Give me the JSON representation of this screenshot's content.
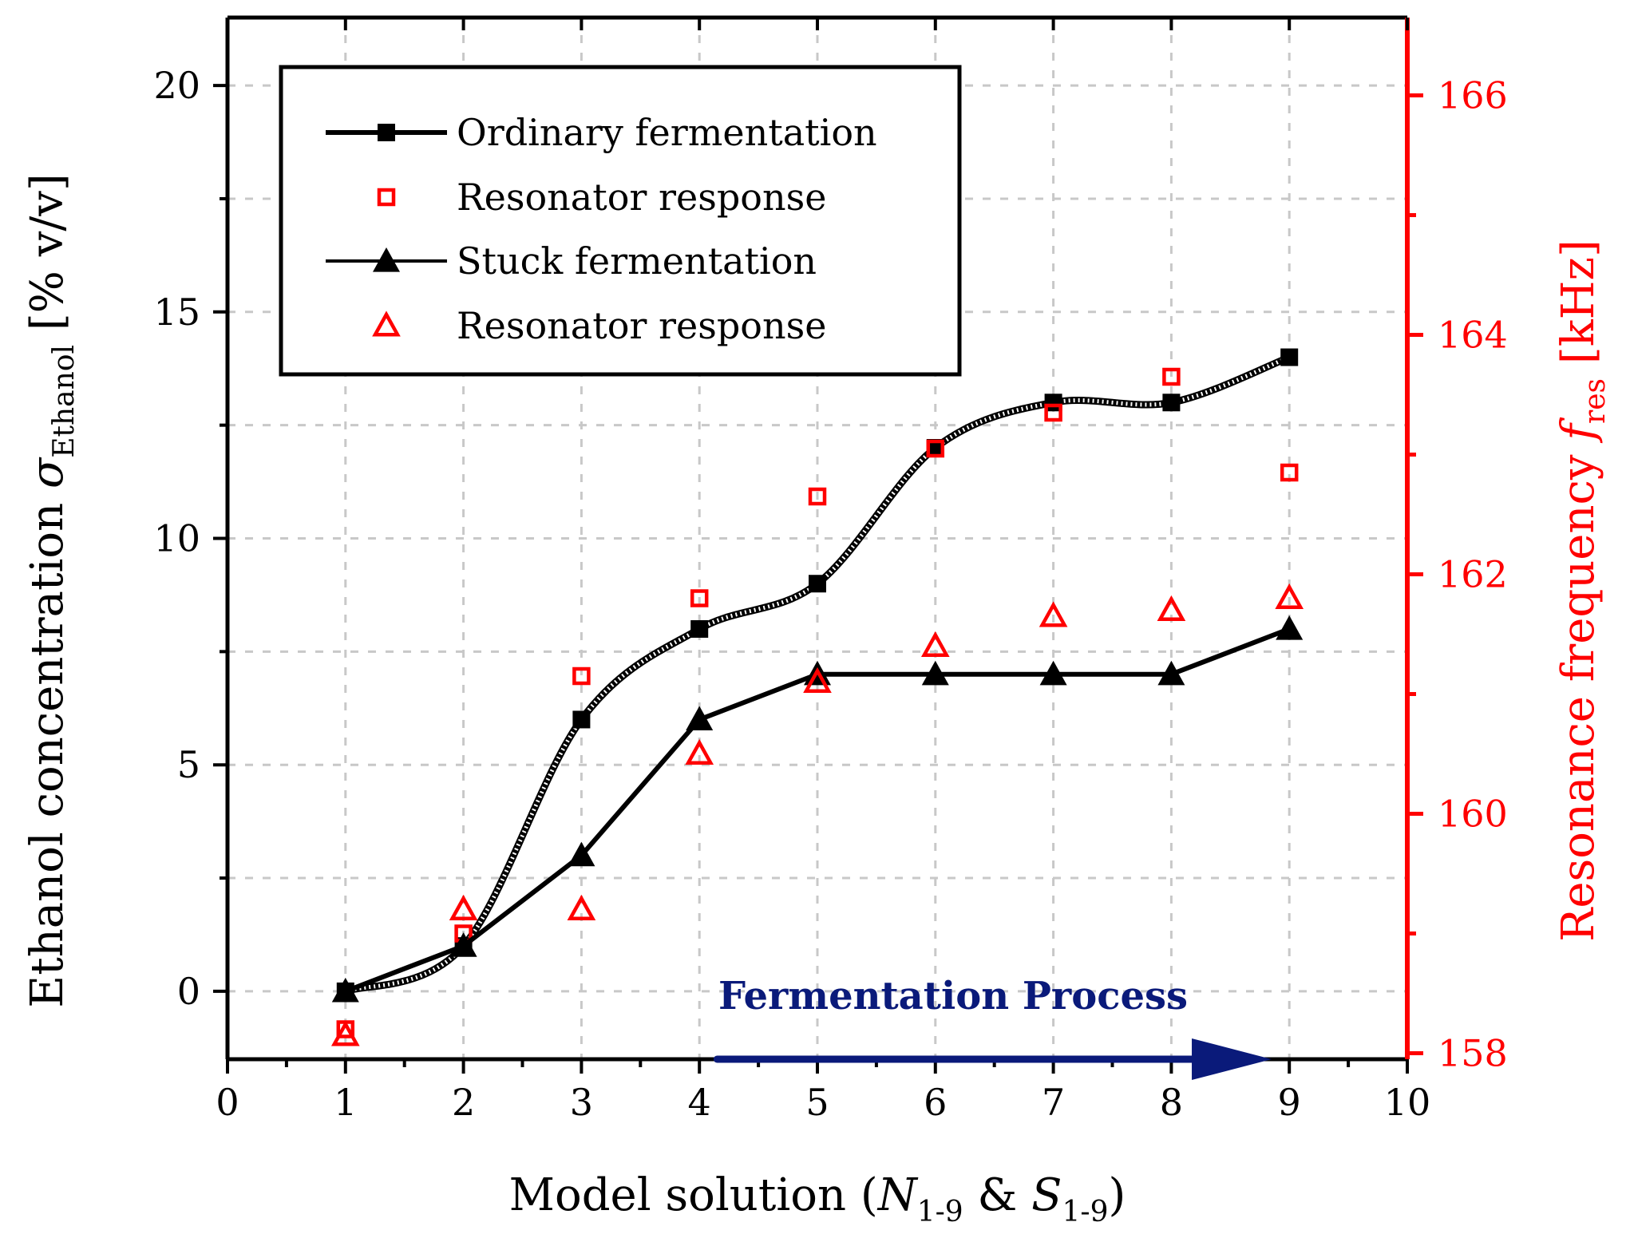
{
  "chart_data": {
    "type": "line",
    "x": [
      1,
      2,
      3,
      4,
      5,
      6,
      7,
      8,
      9
    ],
    "xlim": [
      0,
      10
    ],
    "x_ticks": [
      "0",
      "1",
      "2",
      "3",
      "4",
      "5",
      "6",
      "7",
      "8",
      "9",
      "10"
    ],
    "xlabel": {
      "prefix": "Model solution (",
      "var1": "N",
      "sub1": "1-9",
      "amp": " & ",
      "var2": "S",
      "sub2": "1-9",
      "suffix": ")"
    },
    "y_left": {
      "label": {
        "prefix": "Ethanol concentration ",
        "symbol": "σ",
        "sub": "Ethanol",
        "suffix": " [% v/v]"
      },
      "ylim": [
        -1.5,
        21.5
      ],
      "ticks": [
        "0",
        "5",
        "10",
        "15",
        "20"
      ],
      "tick_values": [
        0,
        5,
        10,
        15,
        20
      ],
      "color": "#000000"
    },
    "y_right": {
      "label": {
        "prefix": "Resonance frequency ",
        "symbol": "f",
        "sub": "res",
        "suffix": " [kHz]"
      },
      "ylim": [
        157.95,
        166.65
      ],
      "ticks": [
        "158",
        "160",
        "162",
        "164",
        "166"
      ],
      "tick_values": [
        158,
        160,
        162,
        164,
        166
      ],
      "color": "#ff0000"
    },
    "grid": true,
    "legend_position": "top-left",
    "series": [
      {
        "name": "Ordinary fermentation",
        "axis": "left",
        "marker": "filled-square",
        "color": "#000000",
        "values": [
          0,
          1,
          6,
          8,
          9,
          12,
          13,
          13,
          14
        ]
      },
      {
        "name": "Resonator response",
        "axis": "right",
        "marker": "open-square",
        "color": "#ff0000",
        "values": [
          158.2,
          159.0,
          161.15,
          161.8,
          162.65,
          163.05,
          163.35,
          163.65,
          162.85
        ]
      },
      {
        "name": "Stuck fermentation",
        "axis": "left",
        "marker": "filled-triangle",
        "color": "#000000",
        "values": [
          0,
          1,
          3,
          6,
          7,
          7,
          7,
          7,
          8
        ]
      },
      {
        "name": "Resonator response",
        "axis": "right",
        "marker": "open-triangle",
        "color": "#ff0000",
        "values": [
          158.15,
          159.2,
          159.2,
          160.5,
          161.1,
          161.4,
          161.65,
          161.7,
          161.8
        ]
      }
    ],
    "annotation": {
      "text": "Fermentation Process",
      "color": "#0a1a7a",
      "arrow_from_x": 4.15,
      "arrow_to_x": 8.85,
      "arrow_y": -1.5
    }
  }
}
